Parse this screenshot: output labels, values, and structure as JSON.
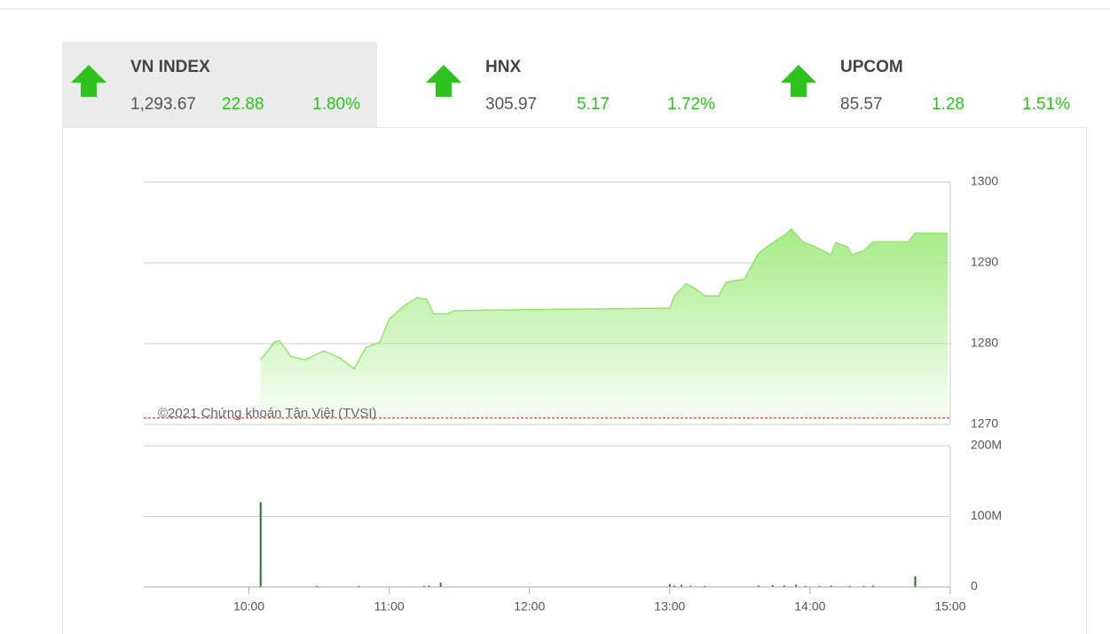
{
  "active_index": 0,
  "indices": [
    {
      "name": "VN INDEX",
      "value": "1,293.67",
      "change": "22.88",
      "percent": "1.80%"
    },
    {
      "name": "HNX",
      "value": "305.97",
      "change": "5.17",
      "percent": "1.72%"
    },
    {
      "name": "UPCOM",
      "value": "85.57",
      "change": "1.28",
      "percent": "1.51%"
    }
  ],
  "chart_data": [
    {
      "type": "area",
      "watermark": "©2021 Chứng khoán Tân Việt (TVSI)",
      "color": "#96e36e",
      "x": [
        605,
        611,
        613,
        618,
        624,
        632,
        639,
        645,
        650,
        656,
        660,
        666,
        672,
        676,
        679,
        685,
        688,
        780,
        782,
        787,
        791,
        795,
        801,
        804,
        812,
        818,
        823,
        829,
        832,
        837,
        842,
        849,
        851,
        856,
        858,
        863,
        867,
        882,
        885,
        899
      ],
      "values": [
        1278.0,
        1280.2,
        1280.4,
        1278.4,
        1278.0,
        1279.1,
        1278.2,
        1276.9,
        1279.5,
        1280.2,
        1283.0,
        1284.6,
        1285.7,
        1285.5,
        1283.7,
        1283.7,
        1284.1,
        1284.4,
        1285.9,
        1287.4,
        1286.8,
        1285.9,
        1285.9,
        1287.6,
        1288.0,
        1291.2,
        1292.3,
        1293.4,
        1294.2,
        1292.6,
        1292.0,
        1291.0,
        1292.5,
        1292.0,
        1291.0,
        1291.5,
        1292.6,
        1292.6,
        1293.7,
        1293.67
      ],
      "xlim": [
        555,
        900
      ],
      "ylim": [
        1270,
        1300
      ],
      "yticks": [
        1270,
        1280,
        1290,
        1300
      ],
      "reference_line": {
        "value": 1270.79,
        "color": "#d42020"
      },
      "grid": true
    },
    {
      "type": "bar",
      "color": "#1f7a1f",
      "x": [
        605,
        629,
        647,
        675,
        677,
        682,
        780,
        782,
        785,
        789,
        795,
        818,
        824,
        829,
        834,
        838,
        844,
        849,
        857,
        863,
        867,
        885
      ],
      "values": [
        120000000,
        1500000,
        1500000,
        1500000,
        2000000,
        6000000,
        4000000,
        2000000,
        3000000,
        1500000,
        1500000,
        2000000,
        2500000,
        2000000,
        3000000,
        1500000,
        1500000,
        2000000,
        1500000,
        1500000,
        2000000,
        15000000
      ],
      "xlim": [
        555,
        900
      ],
      "xticks": [
        {
          "value": 600,
          "label": "10:00"
        },
        {
          "value": 660,
          "label": "11:00"
        },
        {
          "value": 720,
          "label": "12:00"
        },
        {
          "value": 780,
          "label": "13:00"
        },
        {
          "value": 840,
          "label": "14:00"
        },
        {
          "value": 900,
          "label": "15:00"
        }
      ],
      "ylim": [
        0,
        200000000
      ],
      "yticks": [
        0,
        {
          "value": 100000000,
          "label": "100M"
        },
        {
          "value": 200000000,
          "label": "200M"
        }
      ],
      "grid": true
    }
  ]
}
